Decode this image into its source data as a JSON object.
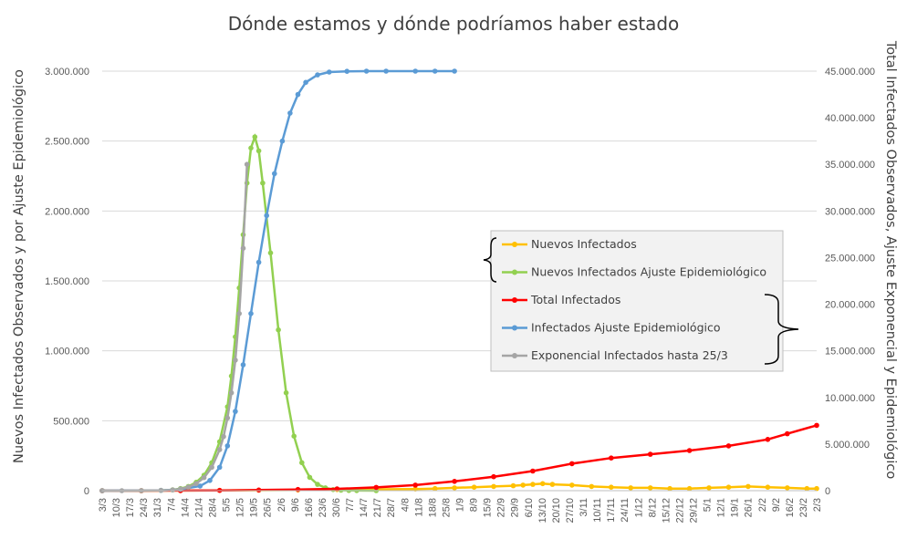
{
  "chart_data": {
    "type": "line",
    "title": "Dónde estamos y dónde podríamos haber estado",
    "ylabel_left": "Nuevos Infectados Observados y por Ajuste Epidemiológico",
    "ylabel_right": "Total Infectados Observados, Ajuste Exponencial y Epidemiológico",
    "y_left": {
      "min": 0,
      "max": 3000000,
      "ticks": [
        "0",
        "500.000",
        "1.000.000",
        "1.500.000",
        "2.000.000",
        "2.500.000",
        "3.000.000"
      ]
    },
    "y_right": {
      "min": 0,
      "max": 45000000,
      "ticks": [
        "0",
        "5.000.000",
        "10.000.000",
        "15.000.000",
        "20.000.000",
        "25.000.000",
        "30.000.000",
        "35.000.000",
        "40.000.000",
        "45.000.000"
      ]
    },
    "x_start_day": 0,
    "x_end_day": 365,
    "x_ticks": [
      "3/3",
      "10/3",
      "17/3",
      "24/3",
      "31/3",
      "7/4",
      "14/4",
      "21/4",
      "28/4",
      "5/5",
      "12/5",
      "19/5",
      "26/5",
      "2/6",
      "9/6",
      "16/6",
      "23/6",
      "30/6",
      "7/7",
      "14/7",
      "21/7",
      "28/7",
      "4/8",
      "11/8",
      "18/8",
      "25/8",
      "1/9",
      "8/9",
      "15/9",
      "22/9",
      "29/9",
      "6/10",
      "13/10",
      "20/10",
      "27/10",
      "3/11",
      "10/11",
      "17/11",
      "24/11",
      "1/12",
      "8/12",
      "15/12",
      "22/12",
      "29/12",
      "5/1",
      "12/1",
      "19/1",
      "26/1",
      "2/2",
      "9/2",
      "16/2",
      "23/2",
      "2/3"
    ],
    "legend": {
      "position": "right-middle"
    },
    "series": [
      {
        "name": "Nuevos Infectados",
        "color": "#FFC000",
        "axis": "left",
        "x": [
          0,
          20,
          40,
          60,
          80,
          100,
          120,
          140,
          160,
          170,
          180,
          190,
          200,
          210,
          215,
          220,
          225,
          230,
          240,
          250,
          260,
          270,
          280,
          290,
          300,
          310,
          320,
          330,
          340,
          350,
          360,
          365
        ],
        "y": [
          0,
          0,
          500,
          2000,
          3000,
          5000,
          8000,
          10000,
          12000,
          15000,
          20000,
          25000,
          30000,
          35000,
          40000,
          45000,
          50000,
          45000,
          40000,
          30000,
          25000,
          20000,
          20000,
          15000,
          15000,
          20000,
          25000,
          30000,
          25000,
          20000,
          15000,
          15000
        ]
      },
      {
        "name": "Nuevos Infectados Ajuste Epidemiológico",
        "color": "#92D050",
        "axis": "left",
        "x": [
          0,
          20,
          30,
          36,
          40,
          44,
          48,
          52,
          56,
          60,
          64,
          66,
          68,
          70,
          72,
          74,
          76,
          78,
          80,
          82,
          86,
          90,
          94,
          98,
          102,
          106,
          110,
          114,
          118,
          122,
          126,
          130,
          140
        ],
        "y": [
          0,
          0,
          2000,
          6000,
          15000,
          30000,
          60000,
          110000,
          200000,
          350000,
          600000,
          820000,
          1100000,
          1450000,
          1830000,
          2200000,
          2450000,
          2530000,
          2430000,
          2200000,
          1700000,
          1150000,
          700000,
          390000,
          200000,
          95000,
          45000,
          20000,
          8000,
          3500,
          1500,
          500,
          0
        ]
      },
      {
        "name": "Total Infectados",
        "color": "#FF0000",
        "axis": "right",
        "x": [
          0,
          20,
          40,
          60,
          80,
          100,
          120,
          140,
          160,
          180,
          200,
          220,
          240,
          260,
          280,
          300,
          320,
          340,
          350,
          365
        ],
        "y": [
          0,
          0,
          10000,
          30000,
          70000,
          130000,
          200000,
          350000,
          600000,
          1000000,
          1500000,
          2100000,
          2900000,
          3500000,
          3900000,
          4300000,
          4800000,
          5500000,
          6100000,
          7000000
        ]
      },
      {
        "name": "Infectados Ajuste Epidemiológico",
        "color": "#5B9BD5",
        "axis": "right",
        "x": [
          0,
          30,
          40,
          50,
          55,
          60,
          64,
          68,
          72,
          76,
          80,
          84,
          88,
          92,
          96,
          100,
          104,
          110,
          116,
          125,
          135,
          145,
          160,
          170,
          180
        ],
        "y": [
          0,
          30000,
          150000,
          500000,
          1100000,
          2500000,
          4800000,
          8500000,
          13500000,
          19000000,
          24500000,
          29500000,
          34000000,
          37500000,
          40500000,
          42500000,
          43800000,
          44600000,
          44900000,
          44980000,
          45000000,
          45000000,
          45000000,
          45000000,
          45000000
        ]
      },
      {
        "name": "Exponencial Infectados hasta 25/3",
        "color": "#A5A5A5",
        "axis": "right",
        "x": [
          0,
          10,
          20,
          30,
          36,
          40,
          44,
          48,
          52,
          56,
          60,
          62,
          64,
          66,
          68,
          70,
          72,
          74
        ],
        "y": [
          500,
          1500,
          5000,
          25000,
          80000,
          180000,
          380000,
          750000,
          1400000,
          2500000,
          4400000,
          5800000,
          7800000,
          10500000,
          14000000,
          19000000,
          26000000,
          35000000
        ]
      }
    ]
  }
}
